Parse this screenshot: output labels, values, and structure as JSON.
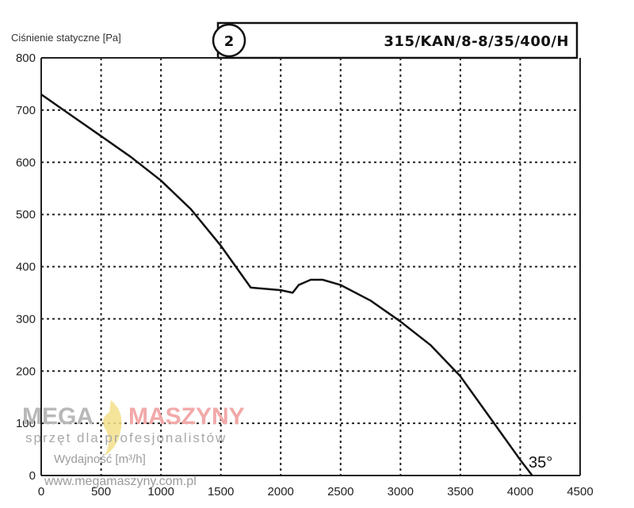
{
  "chart_data": {
    "type": "line",
    "ylabel": "Ciśnienie statyczne [Pa]",
    "xlabel": "Wydajność [m³/h]",
    "model_badge": "2",
    "model": "315/KAN/8-8/35/400/H",
    "x_ticks": [
      "0",
      "500",
      "1000",
      "1500",
      "2000",
      "2500",
      "3000",
      "3500",
      "4000",
      "4500"
    ],
    "y_ticks": [
      "0",
      "100",
      "200",
      "300",
      "400",
      "500",
      "600",
      "700",
      "800"
    ],
    "xlim": [
      0,
      4500
    ],
    "ylim": [
      0,
      800
    ],
    "grid": true,
    "series": [
      {
        "name": "35°",
        "x": [
          0,
          250,
          500,
          750,
          1000,
          1250,
          1500,
          1750,
          2000,
          2100,
          2150,
          2250,
          2350,
          2500,
          2750,
          3000,
          3250,
          3500,
          3750,
          4000,
          4100
        ],
        "y": [
          730,
          690,
          650,
          610,
          565,
          510,
          440,
          360,
          355,
          350,
          365,
          375,
          375,
          365,
          335,
          295,
          250,
          190,
          110,
          30,
          0
        ]
      }
    ]
  },
  "watermark": {
    "brand_left": "MEGA",
    "brand_right": "MASZYNY",
    "tagline": "sprzęt dla profesjonalistów",
    "url": "www.megamaszyny.com.pl"
  }
}
